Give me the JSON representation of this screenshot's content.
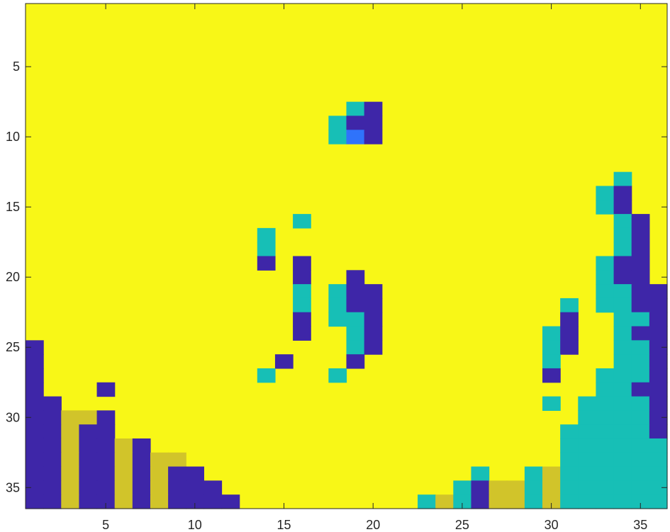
{
  "chart_data": {
    "type": "heatmap",
    "title": "",
    "xlabel": "",
    "ylabel": "",
    "xlim": [
      0.5,
      36.5
    ],
    "ylim": [
      0.5,
      36.5
    ],
    "y_reversed": true,
    "grid": false,
    "colormap": "parula",
    "color_levels": {
      "0": "#3e26a8",
      "1": "#2f73fb",
      "2": "#17bfb6",
      "3": "#d1c42a",
      "4": "#f8f717"
    },
    "default_value": 4,
    "x_ticks": [
      5,
      10,
      15,
      20,
      25,
      30,
      35
    ],
    "x_tick_labels": [
      "5",
      "10",
      "15",
      "20",
      "25",
      "30",
      "35"
    ],
    "y_ticks": [
      5,
      10,
      15,
      20,
      25,
      30,
      35
    ],
    "y_tick_labels": [
      "5",
      "10",
      "15",
      "20",
      "25",
      "30",
      "35"
    ],
    "cells": [
      [
        8,
        19,
        2
      ],
      [
        8,
        20,
        0
      ],
      [
        9,
        18,
        2
      ],
      [
        9,
        19,
        0
      ],
      [
        9,
        20,
        0
      ],
      [
        10,
        18,
        2
      ],
      [
        10,
        19,
        1
      ],
      [
        10,
        20,
        0
      ],
      [
        13,
        34,
        2
      ],
      [
        14,
        33,
        2
      ],
      [
        14,
        34,
        0
      ],
      [
        15,
        33,
        2
      ],
      [
        15,
        34,
        0
      ],
      [
        16,
        16,
        2
      ],
      [
        16,
        34,
        2
      ],
      [
        16,
        35,
        0
      ],
      [
        17,
        14,
        2
      ],
      [
        17,
        34,
        2
      ],
      [
        17,
        35,
        0
      ],
      [
        18,
        14,
        2
      ],
      [
        18,
        34,
        2
      ],
      [
        18,
        35,
        0
      ],
      [
        19,
        14,
        0
      ],
      [
        19,
        16,
        0
      ],
      [
        19,
        33,
        2
      ],
      [
        19,
        34,
        0
      ],
      [
        19,
        35,
        0
      ],
      [
        20,
        16,
        0
      ],
      [
        20,
        19,
        0
      ],
      [
        20,
        33,
        2
      ],
      [
        20,
        34,
        0
      ],
      [
        20,
        35,
        0
      ],
      [
        21,
        16,
        2
      ],
      [
        21,
        18,
        2
      ],
      [
        21,
        19,
        0
      ],
      [
        21,
        20,
        0
      ],
      [
        21,
        33,
        2
      ],
      [
        21,
        34,
        2
      ],
      [
        21,
        35,
        0
      ],
      [
        21,
        36,
        0
      ],
      [
        22,
        16,
        2
      ],
      [
        22,
        18,
        2
      ],
      [
        22,
        19,
        0
      ],
      [
        22,
        20,
        0
      ],
      [
        22,
        31,
        2
      ],
      [
        22,
        33,
        2
      ],
      [
        22,
        34,
        2
      ],
      [
        22,
        35,
        0
      ],
      [
        22,
        36,
        0
      ],
      [
        23,
        16,
        0
      ],
      [
        23,
        18,
        2
      ],
      [
        23,
        19,
        2
      ],
      [
        23,
        20,
        0
      ],
      [
        23,
        31,
        0
      ],
      [
        23,
        34,
        2
      ],
      [
        23,
        35,
        2
      ],
      [
        23,
        36,
        0
      ],
      [
        24,
        16,
        0
      ],
      [
        24,
        19,
        2
      ],
      [
        24,
        20,
        0
      ],
      [
        24,
        30,
        2
      ],
      [
        24,
        31,
        0
      ],
      [
        24,
        34,
        2
      ],
      [
        24,
        35,
        0
      ],
      [
        24,
        36,
        0
      ],
      [
        25,
        1,
        0
      ],
      [
        25,
        19,
        2
      ],
      [
        25,
        20,
        0
      ],
      [
        25,
        30,
        2
      ],
      [
        25,
        31,
        0
      ],
      [
        25,
        34,
        2
      ],
      [
        25,
        35,
        2
      ],
      [
        25,
        36,
        0
      ],
      [
        26,
        1,
        0
      ],
      [
        26,
        15,
        0
      ],
      [
        26,
        19,
        0
      ],
      [
        26,
        30,
        2
      ],
      [
        26,
        34,
        2
      ],
      [
        26,
        35,
        2
      ],
      [
        26,
        36,
        0
      ],
      [
        27,
        1,
        0
      ],
      [
        27,
        14,
        2
      ],
      [
        27,
        18,
        2
      ],
      [
        27,
        30,
        0
      ],
      [
        27,
        33,
        2
      ],
      [
        27,
        34,
        2
      ],
      [
        27,
        35,
        2
      ],
      [
        27,
        36,
        0
      ],
      [
        28,
        1,
        0
      ],
      [
        28,
        5,
        0
      ],
      [
        28,
        33,
        2
      ],
      [
        28,
        34,
        2
      ],
      [
        28,
        35,
        0
      ],
      [
        28,
        36,
        0
      ],
      [
        29,
        1,
        0
      ],
      [
        29,
        2,
        0
      ],
      [
        29,
        30,
        2
      ],
      [
        29,
        32,
        2
      ],
      [
        29,
        33,
        2
      ],
      [
        29,
        34,
        2
      ],
      [
        29,
        35,
        2
      ],
      [
        29,
        36,
        0
      ],
      [
        30,
        1,
        0
      ],
      [
        30,
        2,
        0
      ],
      [
        30,
        3,
        3
      ],
      [
        30,
        4,
        3
      ],
      [
        30,
        5,
        0
      ],
      [
        30,
        32,
        2
      ],
      [
        30,
        33,
        2
      ],
      [
        30,
        34,
        2
      ],
      [
        30,
        35,
        2
      ],
      [
        30,
        36,
        0
      ],
      [
        31,
        1,
        0
      ],
      [
        31,
        2,
        0
      ],
      [
        31,
        3,
        3
      ],
      [
        31,
        4,
        0
      ],
      [
        31,
        5,
        0
      ],
      [
        31,
        31,
        2
      ],
      [
        31,
        32,
        2
      ],
      [
        31,
        33,
        2
      ],
      [
        31,
        34,
        2
      ],
      [
        31,
        35,
        2
      ],
      [
        31,
        36,
        0
      ],
      [
        32,
        1,
        0
      ],
      [
        32,
        2,
        0
      ],
      [
        32,
        3,
        3
      ],
      [
        32,
        4,
        0
      ],
      [
        32,
        5,
        0
      ],
      [
        32,
        6,
        3
      ],
      [
        32,
        7,
        0
      ],
      [
        32,
        31,
        2
      ],
      [
        32,
        32,
        2
      ],
      [
        32,
        33,
        2
      ],
      [
        32,
        34,
        2
      ],
      [
        32,
        35,
        2
      ],
      [
        32,
        36,
        2
      ],
      [
        33,
        1,
        0
      ],
      [
        33,
        2,
        0
      ],
      [
        33,
        3,
        3
      ],
      [
        33,
        4,
        0
      ],
      [
        33,
        5,
        0
      ],
      [
        33,
        6,
        3
      ],
      [
        33,
        7,
        0
      ],
      [
        33,
        8,
        3
      ],
      [
        33,
        9,
        3
      ],
      [
        33,
        31,
        2
      ],
      [
        33,
        32,
        2
      ],
      [
        33,
        33,
        2
      ],
      [
        33,
        34,
        2
      ],
      [
        33,
        35,
        2
      ],
      [
        33,
        36,
        2
      ],
      [
        34,
        1,
        0
      ],
      [
        34,
        2,
        0
      ],
      [
        34,
        3,
        3
      ],
      [
        34,
        4,
        0
      ],
      [
        34,
        5,
        0
      ],
      [
        34,
        6,
        3
      ],
      [
        34,
        7,
        0
      ],
      [
        34,
        8,
        3
      ],
      [
        34,
        9,
        0
      ],
      [
        34,
        10,
        0
      ],
      [
        34,
        26,
        2
      ],
      [
        34,
        29,
        2
      ],
      [
        34,
        30,
        3
      ],
      [
        34,
        31,
        2
      ],
      [
        34,
        32,
        2
      ],
      [
        34,
        33,
        2
      ],
      [
        34,
        34,
        2
      ],
      [
        34,
        35,
        2
      ],
      [
        34,
        36,
        2
      ],
      [
        35,
        1,
        0
      ],
      [
        35,
        2,
        0
      ],
      [
        35,
        3,
        3
      ],
      [
        35,
        4,
        0
      ],
      [
        35,
        5,
        0
      ],
      [
        35,
        6,
        3
      ],
      [
        35,
        7,
        0
      ],
      [
        35,
        8,
        3
      ],
      [
        35,
        9,
        0
      ],
      [
        35,
        10,
        0
      ],
      [
        35,
        11,
        0
      ],
      [
        35,
        25,
        2
      ],
      [
        35,
        26,
        0
      ],
      [
        35,
        27,
        3
      ],
      [
        35,
        28,
        3
      ],
      [
        35,
        29,
        2
      ],
      [
        35,
        30,
        3
      ],
      [
        35,
        31,
        2
      ],
      [
        35,
        32,
        2
      ],
      [
        35,
        33,
        2
      ],
      [
        35,
        34,
        2
      ],
      [
        35,
        35,
        2
      ],
      [
        35,
        36,
        2
      ],
      [
        36,
        1,
        0
      ],
      [
        36,
        2,
        0
      ],
      [
        36,
        3,
        3
      ],
      [
        36,
        4,
        0
      ],
      [
        36,
        5,
        0
      ],
      [
        36,
        6,
        3
      ],
      [
        36,
        7,
        0
      ],
      [
        36,
        8,
        3
      ],
      [
        36,
        9,
        0
      ],
      [
        36,
        10,
        0
      ],
      [
        36,
        11,
        0
      ],
      [
        36,
        12,
        0
      ],
      [
        36,
        23,
        2
      ],
      [
        36,
        24,
        3
      ],
      [
        36,
        25,
        2
      ],
      [
        36,
        26,
        0
      ],
      [
        36,
        27,
        3
      ],
      [
        36,
        28,
        3
      ],
      [
        36,
        29,
        2
      ],
      [
        36,
        30,
        3
      ],
      [
        36,
        31,
        2
      ],
      [
        36,
        32,
        2
      ],
      [
        36,
        33,
        2
      ],
      [
        36,
        34,
        2
      ],
      [
        36,
        35,
        2
      ],
      [
        36,
        36,
        2
      ]
    ]
  }
}
